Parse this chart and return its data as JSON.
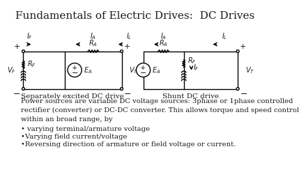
{
  "title": "Fundamentals of Electric Drives:  DC Drives",
  "title_fontsize": 11,
  "bg_color": "#ffffff",
  "text_color": "#1a1a1a",
  "label1": "Separately excited DC drive",
  "label2": "Shunt DC drive",
  "body_text": "Power sources are variable DC voltage sources: 3phase or 1phase controlled\nrectifier (converter) or DC-DC converter. This allows torque and speed control\nwithin an broad range, by",
  "bullet1": "• varying terminal/armature voltage",
  "bullet2": "•Varying field current/voltage",
  "bullet3": "•Reversing direction of armature or field voltage or current.",
  "font_family": "serif",
  "lw": 1.0
}
